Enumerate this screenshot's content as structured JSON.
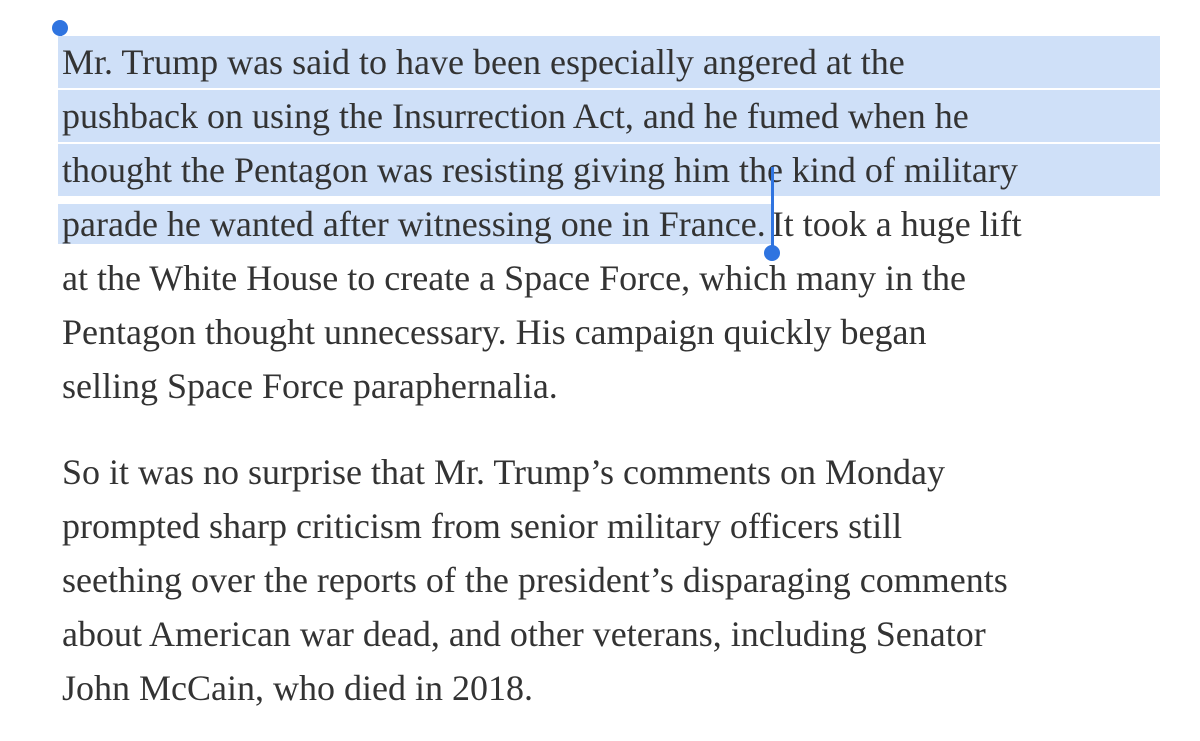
{
  "paragraphs": [
    {
      "selected_lines": [
        "Mr. Trump was said to have been especially angered at the",
        "pushback on using the Insurrection Act, and he fumed when he",
        "thought the Pentagon was resisting giving him the kind of military",
        "parade he wanted after witnessing one in France."
      ],
      "lines": [
        "It took a huge lift",
        "at the White House to create a Space Force, which many in the",
        "Pentagon thought unnecessary. His campaign quickly began",
        "selling Space Force paraphernalia."
      ]
    },
    {
      "lines": [
        "So it was no surprise that Mr. Trump’s comments on Monday",
        "prompted sharp criticism from senior military officers still",
        "seething over the reports of the president’s disparaging comments",
        "about American war dead, and other veterans, including Senator",
        "John McCain, who died in 2018."
      ]
    }
  ]
}
